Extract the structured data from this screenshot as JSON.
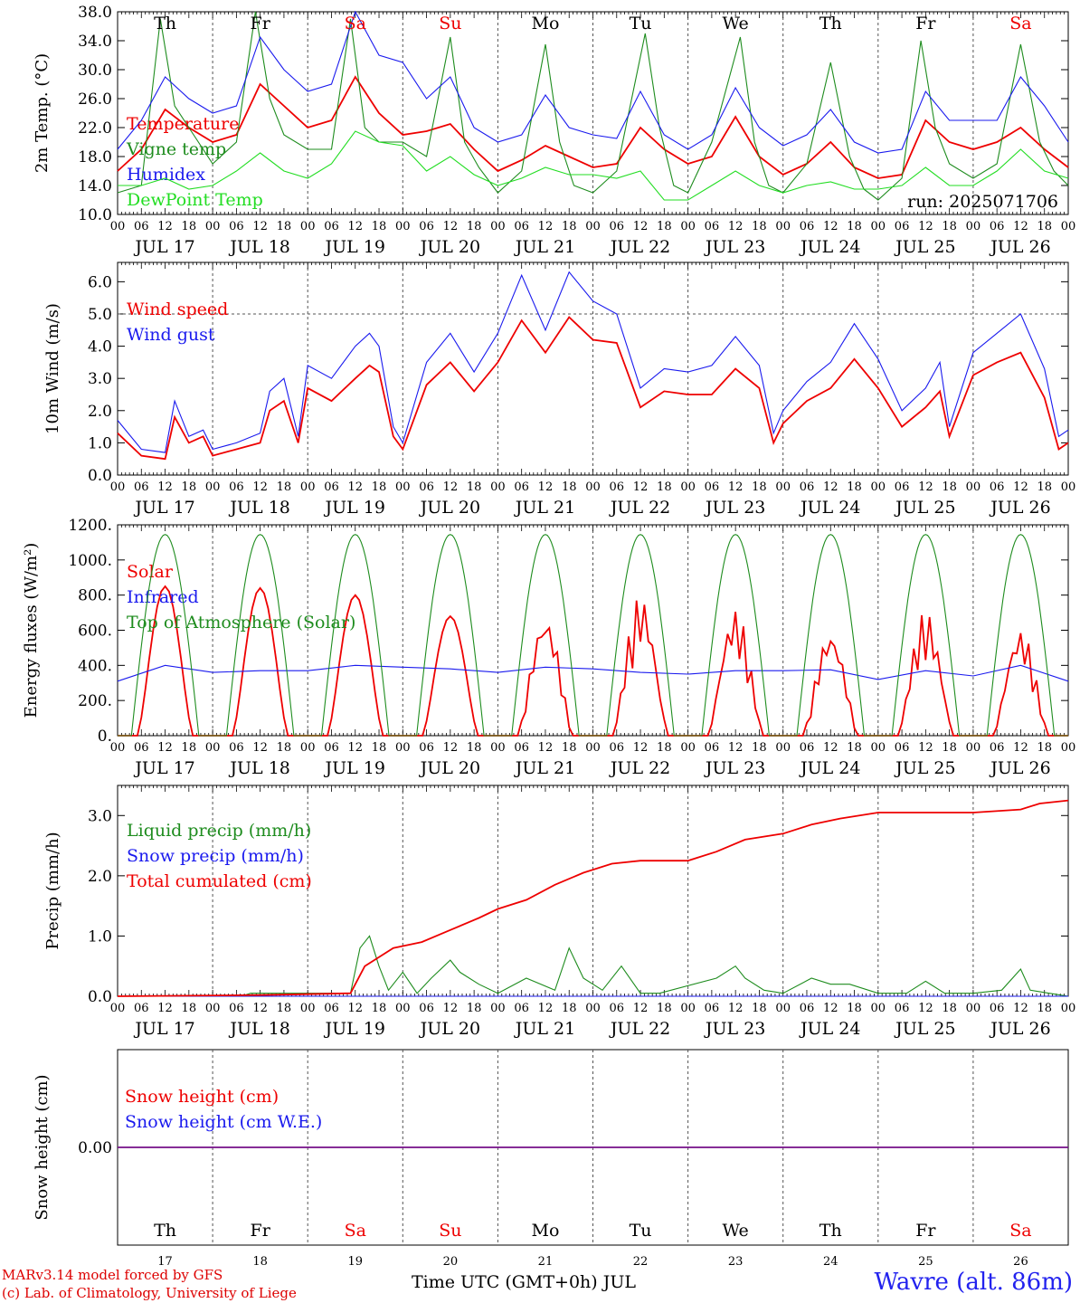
{
  "footer": {
    "model_line": "MARv3.14 model forced by GFS",
    "credit_line": "(c) Lab. of Climatology, University of Liege",
    "xlabel": "Time UTC (GMT+0h) JUL",
    "station": "Wavre (alt. 86m)"
  },
  "colors": {
    "red": "#ee0000",
    "green": "#1e8c1e",
    "blue": "#1a1aee",
    "lightgreen": "#22dd22",
    "grid": "#555555"
  },
  "x_axis": {
    "hour_ticks": [
      "00",
      "06",
      "12",
      "18"
    ],
    "date_labels": [
      "JUL 17",
      "JUL 18",
      "JUL 19",
      "JUL 20",
      "JUL 21",
      "JUL 22",
      "JUL 23",
      "JUL 24",
      "JUL 25",
      "JUL 26"
    ],
    "weekdays": [
      "Th",
      "Fr",
      "Sa",
      "Su",
      "Mo",
      "Tu",
      "We",
      "Th",
      "Fr",
      "Sa"
    ],
    "weekend_days": [
      2,
      3,
      9
    ],
    "day_numbers": [
      "17",
      "18",
      "19",
      "20",
      "21",
      "22",
      "23",
      "24",
      "25",
      "26"
    ]
  },
  "chart_data": [
    {
      "type": "line",
      "id": "temperature",
      "ylabel": "2m Temp. (°C)",
      "ylim": [
        10,
        38
      ],
      "yticks": [
        "10.0",
        "14.0",
        "18.0",
        "22.0",
        "26.0",
        "30.0",
        "34.0",
        "38.0"
      ],
      "ytick_values": [
        10,
        14,
        18,
        22,
        26,
        30,
        34,
        38
      ],
      "annotation": "run: 2025071706",
      "xlim_days": [
        0,
        10
      ],
      "series": [
        {
          "name": "Temperature",
          "color": "red",
          "x": [
            0,
            0.25,
            0.5,
            0.75,
            1,
            1.25,
            1.5,
            1.75,
            2,
            2.25,
            2.5,
            2.75,
            3,
            3.25,
            3.5,
            3.75,
            4,
            4.25,
            4.5,
            4.75,
            5,
            5.25,
            5.5,
            5.75,
            6,
            6.25,
            6.5,
            6.75,
            7,
            7.25,
            7.5,
            7.75,
            8,
            8.25,
            8.5,
            8.75,
            9,
            9.25,
            9.5,
            9.75,
            10
          ],
          "y": [
            16,
            19,
            24.5,
            22,
            20,
            21,
            28,
            25,
            22,
            23,
            29,
            24,
            21,
            21.5,
            22.5,
            19,
            16,
            17.5,
            19.5,
            18,
            16.5,
            17,
            22,
            19,
            17,
            18,
            23.5,
            18,
            15.5,
            17,
            20,
            16.5,
            15,
            15.5,
            23,
            20,
            19,
            20,
            22,
            19,
            16.5
          ]
        },
        {
          "name": "Vigne temp",
          "color": "green",
          "x": [
            0,
            0.25,
            0.45,
            0.6,
            0.75,
            1,
            1.25,
            1.45,
            1.6,
            1.75,
            2,
            2.25,
            2.45,
            2.6,
            2.75,
            3,
            3.25,
            3.5,
            3.65,
            3.8,
            4,
            4.25,
            4.5,
            4.65,
            4.8,
            5,
            5.25,
            5.55,
            5.7,
            5.85,
            6,
            6.25,
            6.55,
            6.7,
            6.85,
            7,
            7.25,
            7.5,
            7.7,
            7.85,
            8,
            8.25,
            8.45,
            8.6,
            8.75,
            9,
            9.25,
            9.5,
            9.7,
            9.85,
            10
          ],
          "y": [
            13,
            14,
            37,
            25,
            22,
            17,
            20,
            38,
            26,
            21,
            19,
            19,
            37,
            22,
            20,
            20,
            18,
            34.5,
            20,
            16.5,
            13,
            16,
            33.5,
            20,
            14,
            13,
            16,
            35,
            22,
            14,
            13,
            20,
            34.5,
            20,
            14,
            13,
            17,
            31,
            18,
            13.5,
            12,
            15,
            34,
            22,
            17,
            15,
            17,
            33.5,
            20,
            16,
            14
          ]
        },
        {
          "name": "Humidex",
          "color": "blue",
          "x": [
            0,
            0.25,
            0.5,
            0.75,
            1,
            1.25,
            1.5,
            1.75,
            2,
            2.25,
            2.5,
            2.75,
            3,
            3.25,
            3.5,
            3.75,
            4,
            4.25,
            4.5,
            4.75,
            5,
            5.25,
            5.5,
            5.75,
            6,
            6.25,
            6.5,
            6.75,
            7,
            7.25,
            7.5,
            7.75,
            8,
            8.25,
            8.5,
            8.75,
            9,
            9.25,
            9.5,
            9.75,
            10
          ],
          "y": [
            19,
            23,
            29,
            26,
            24,
            25,
            34.5,
            30,
            27,
            28,
            38,
            32,
            31,
            26,
            29,
            22,
            20,
            21,
            26.5,
            22,
            21,
            20.5,
            27,
            21,
            19,
            21,
            27.5,
            22,
            19.5,
            21,
            24.5,
            20,
            18.5,
            19,
            27,
            23,
            23,
            23,
            29,
            25,
            20
          ]
        },
        {
          "name": "DewPoint Temp",
          "color": "lightgreen",
          "x": [
            0,
            0.25,
            0.5,
            0.75,
            1,
            1.25,
            1.5,
            1.75,
            2,
            2.25,
            2.5,
            2.75,
            3,
            3.25,
            3.5,
            3.75,
            4,
            4.25,
            4.5,
            4.75,
            5,
            5.25,
            5.5,
            5.75,
            6,
            6.25,
            6.5,
            6.75,
            7,
            7.25,
            7.5,
            7.75,
            8,
            8.25,
            8.5,
            8.75,
            9,
            9.25,
            9.5,
            9.75,
            10
          ],
          "y": [
            14,
            14,
            15,
            13.5,
            14,
            16,
            18.5,
            16,
            15,
            17,
            21.5,
            20,
            19.5,
            16,
            18,
            15.5,
            14,
            15,
            16.5,
            15.5,
            15.5,
            15,
            16,
            12,
            12,
            14,
            16,
            14,
            13,
            14,
            14.5,
            13.5,
            13.5,
            14,
            16.5,
            14,
            14,
            16,
            19,
            16,
            15
          ]
        }
      ]
    },
    {
      "type": "line",
      "id": "wind",
      "ylabel": "10m Wind (m/s)",
      "ylim": [
        0,
        6.6
      ],
      "yticks": [
        "0.0",
        "1.0",
        "2.0",
        "3.0",
        "4.0",
        "5.0",
        "6.0"
      ],
      "ytick_values": [
        0,
        1,
        2,
        3,
        4,
        5,
        6
      ],
      "reference_line": 5,
      "series": [
        {
          "name": "Wind speed",
          "color": "red",
          "x": [
            0,
            0.25,
            0.5,
            0.6,
            0.75,
            0.9,
            1,
            1.25,
            1.5,
            1.6,
            1.75,
            1.9,
            2,
            2.25,
            2.5,
            2.65,
            2.75,
            2.9,
            3,
            3.25,
            3.5,
            3.75,
            4,
            4.25,
            4.5,
            4.75,
            5,
            5.25,
            5.5,
            5.75,
            6,
            6.25,
            6.5,
            6.75,
            6.9,
            7,
            7.25,
            7.5,
            7.75,
            8,
            8.25,
            8.5,
            8.65,
            8.75,
            9,
            9.25,
            9.5,
            9.75,
            9.9,
            10
          ],
          "y": [
            1.3,
            0.6,
            0.5,
            1.8,
            1.0,
            1.2,
            0.6,
            0.8,
            1.0,
            2.0,
            2.3,
            1.0,
            2.7,
            2.3,
            3.0,
            3.4,
            3.2,
            1.2,
            0.8,
            2.8,
            3.5,
            2.6,
            3.5,
            4.8,
            3.8,
            4.9,
            4.2,
            4.1,
            2.1,
            2.6,
            2.5,
            2.5,
            3.3,
            2.7,
            1.0,
            1.6,
            2.3,
            2.7,
            3.6,
            2.7,
            1.5,
            2.1,
            2.6,
            1.2,
            3.1,
            3.5,
            3.8,
            2.4,
            0.8,
            1.0
          ]
        },
        {
          "name": "Wind gust",
          "color": "blue",
          "x": [
            0,
            0.25,
            0.5,
            0.6,
            0.75,
            0.9,
            1,
            1.25,
            1.5,
            1.6,
            1.75,
            1.9,
            2,
            2.25,
            2.5,
            2.65,
            2.75,
            2.9,
            3,
            3.25,
            3.5,
            3.75,
            4,
            4.25,
            4.5,
            4.75,
            5,
            5.25,
            5.5,
            5.75,
            6,
            6.25,
            6.5,
            6.75,
            6.9,
            7,
            7.25,
            7.5,
            7.75,
            8,
            8.25,
            8.5,
            8.65,
            8.75,
            9,
            9.25,
            9.5,
            9.75,
            9.9,
            10
          ],
          "y": [
            1.7,
            0.8,
            0.7,
            2.3,
            1.2,
            1.4,
            0.8,
            1.0,
            1.3,
            2.6,
            3.0,
            1.2,
            3.4,
            3.0,
            4.0,
            4.4,
            4.0,
            1.5,
            1.0,
            3.5,
            4.4,
            3.2,
            4.4,
            6.2,
            4.5,
            6.3,
            5.4,
            5.0,
            2.7,
            3.3,
            3.2,
            3.4,
            4.3,
            3.4,
            1.3,
            2.0,
            2.9,
            3.5,
            4.7,
            3.6,
            2.0,
            2.7,
            3.5,
            1.5,
            3.8,
            4.4,
            5.0,
            3.3,
            1.2,
            1.4
          ]
        }
      ]
    },
    {
      "type": "line",
      "id": "energy",
      "ylabel": "Energy fluxes (W/m²)",
      "ylim": [
        0,
        1200
      ],
      "yticks": [
        "0.",
        "200.",
        "400.",
        "600.",
        "800.",
        "1000.",
        "1200."
      ],
      "ytick_values": [
        0,
        200,
        400,
        600,
        800,
        1000,
        1200
      ],
      "series": [
        {
          "name": "Solar",
          "color": "red",
          "peaks_by_day": [
            850,
            840,
            800,
            680,
            690,
            800,
            720,
            600,
            710,
            610
          ]
        },
        {
          "name": "Infrared",
          "color": "blue",
          "x": [
            0,
            0.5,
            1,
            1.5,
            2,
            2.5,
            3,
            3.5,
            4,
            4.5,
            5,
            5.5,
            6,
            6.5,
            7,
            7.5,
            8,
            8.5,
            9,
            9.5,
            10
          ],
          "y": [
            310,
            400,
            360,
            370,
            370,
            400,
            390,
            380,
            360,
            390,
            380,
            360,
            350,
            370,
            370,
            375,
            320,
            370,
            340,
            400,
            310
          ]
        },
        {
          "name": "Top of Atmosphere (Solar)",
          "color": "green",
          "daily_peak": 1145
        }
      ]
    },
    {
      "type": "line",
      "id": "precip",
      "ylabel": "Precip (mm/h)",
      "ylim": [
        0,
        3.5
      ],
      "yticks": [
        "0.0",
        "1.0",
        "2.0",
        "3.0"
      ],
      "ytick_values": [
        0,
        1,
        2,
        3
      ],
      "series": [
        {
          "name": "Liquid precip (mm/h)",
          "color": "green",
          "x": [
            0,
            1.3,
            1.4,
            2.45,
            2.55,
            2.65,
            2.75,
            2.85,
            3.0,
            3.15,
            3.3,
            3.5,
            3.6,
            3.8,
            4.0,
            4.3,
            4.6,
            4.75,
            4.9,
            5.1,
            5.3,
            5.5,
            5.7,
            6.3,
            6.5,
            6.6,
            6.8,
            7.0,
            7.3,
            7.5,
            7.7,
            8.0,
            8.3,
            8.5,
            8.7,
            9.0,
            9.3,
            9.5,
            9.6,
            9.8,
            10
          ],
          "y": [
            0,
            0,
            0.05,
            0.05,
            0.8,
            1.0,
            0.5,
            0.1,
            0.4,
            0.05,
            0.3,
            0.6,
            0.4,
            0.2,
            0.05,
            0.3,
            0.1,
            0.8,
            0.3,
            0.1,
            0.5,
            0.05,
            0.05,
            0.3,
            0.5,
            0.3,
            0.1,
            0.05,
            0.3,
            0.2,
            0.2,
            0.05,
            0.05,
            0.25,
            0.05,
            0.05,
            0.1,
            0.45,
            0.1,
            0.05,
            0
          ]
        },
        {
          "name": "Snow precip (mm/h)",
          "color": "blue",
          "x": [
            0,
            10
          ],
          "y": [
            0,
            0
          ]
        },
        {
          "name": "Total cumulated (cm)",
          "color": "red",
          "x": [
            0,
            1.5,
            2.45,
            2.6,
            2.9,
            3.2,
            3.5,
            3.8,
            4.0,
            4.3,
            4.6,
            4.9,
            5.2,
            5.5,
            6.0,
            6.3,
            6.6,
            7.0,
            7.3,
            7.6,
            8.0,
            9.0,
            9.5,
            9.7,
            10
          ],
          "y": [
            0,
            0.02,
            0.05,
            0.5,
            0.8,
            0.9,
            1.1,
            1.3,
            1.45,
            1.6,
            1.85,
            2.05,
            2.2,
            2.25,
            2.25,
            2.4,
            2.6,
            2.7,
            2.85,
            2.95,
            3.05,
            3.05,
            3.1,
            3.2,
            3.25
          ]
        }
      ]
    },
    {
      "type": "line",
      "id": "snow",
      "ylabel": "Snow height (cm)",
      "ylim": [
        -1,
        1
      ],
      "yticks": [
        "0.00"
      ],
      "ytick_values": [
        0
      ],
      "series": [
        {
          "name": "Snow height (cm)",
          "color": "red",
          "x": [
            0,
            10
          ],
          "y": [
            0,
            0
          ]
        },
        {
          "name": "Snow height (cm W.E.)",
          "color": "blue",
          "x": [
            0,
            10
          ],
          "y": [
            0,
            0
          ]
        }
      ]
    }
  ]
}
